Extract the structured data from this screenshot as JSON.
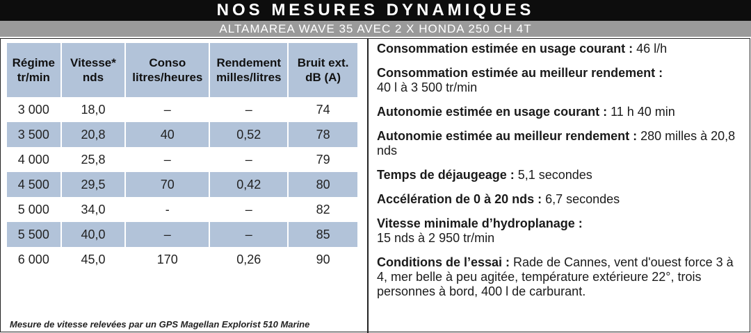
{
  "header": {
    "title": "NOS MESURES DYNAMIQUES",
    "subtitle": "ALTAMAREA WAVE 35 AVEC 2 X HONDA 250 CH 4T"
  },
  "table": {
    "columns": [
      {
        "line1": "Régime",
        "line2": "tr/min"
      },
      {
        "line1": "Vitesse*",
        "line2": "nds"
      },
      {
        "line1": "Conso",
        "line2": "litres/heures"
      },
      {
        "line1": "Rendement",
        "line2": "milles/litres"
      },
      {
        "line1": "Bruit ext.",
        "line2": "dB (A)"
      }
    ],
    "rows": [
      [
        "3 000",
        "18,0",
        "–",
        "–",
        "74"
      ],
      [
        "3 500",
        "20,8",
        "40",
        "0,52",
        "78"
      ],
      [
        "4 000",
        "25,8",
        "–",
        "–",
        "79"
      ],
      [
        "4 500",
        "29,5",
        "70",
        "0,42",
        "80"
      ],
      [
        "5 000",
        "34,0",
        "-",
        "–",
        "82"
      ],
      [
        "5 500",
        "40,0",
        "–",
        "–",
        "85"
      ],
      [
        "6 000",
        "45,0",
        "170",
        "0,26",
        "90"
      ]
    ],
    "footnote": "Mesure de vitesse relevées par un GPS Magellan Explorist 510 Marine"
  },
  "specs": [
    {
      "label": "Consommation estimée en usage courant :",
      "value": " 46 l/h"
    },
    {
      "label": "Consommation estimée au meilleur rendement :",
      "value": " 40 l à 3 500 tr/min"
    },
    {
      "label": "Autonomie estimée en usage courant :",
      "value": " 11 h 40 min"
    },
    {
      "label": "Autonomie estimée au meilleur rendement :",
      "value": "  280 milles à 20,8 nds"
    },
    {
      "label": "Temps de déjaugeage :",
      "value": " 5,1 secondes"
    },
    {
      "label": "Accélération de 0 à 20 nds :",
      "value": " 6,7 secondes"
    },
    {
      "label": "Vitesse minimale d’hydroplanage :",
      "value": " 15 nds à 2 950 tr/min"
    },
    {
      "label": "Conditions de l’essai :",
      "value": " Rade de Cannes, vent d'ouest force 3 à 4, mer belle à peu agitée, température extérieure 22°, trois personnes à bord, 400 l de carburant."
    }
  ],
  "colors": {
    "header_bg": "#0d0d0d",
    "subheader_bg": "#9a9a9a",
    "row_shade": "#b2c3d9"
  }
}
